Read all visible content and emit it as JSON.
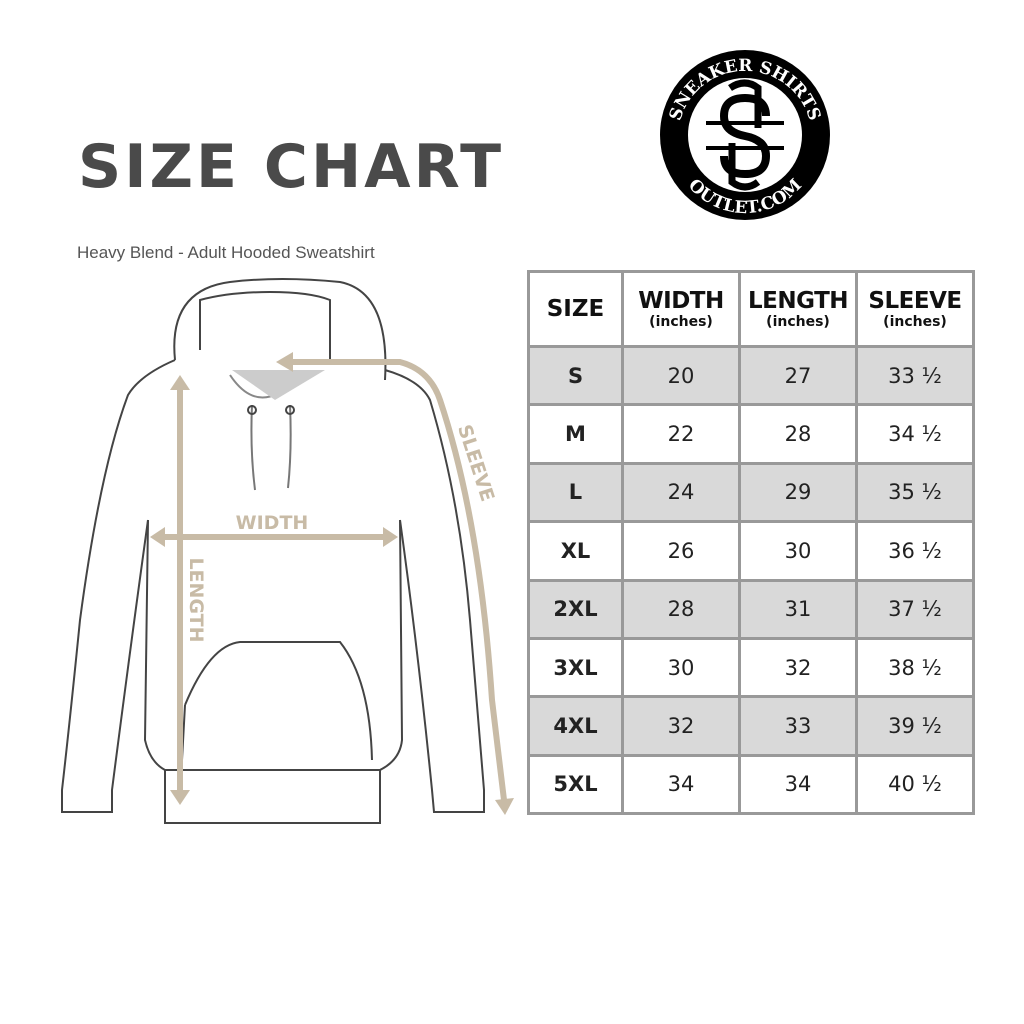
{
  "title": "SIZE CHART",
  "subtitle": "Heavy Blend - Adult Hooded Sweatshirt",
  "logo": {
    "top_text": "SNEAKER SHIRTS",
    "bottom_text": "OUTLET.COM",
    "monogram": "SS"
  },
  "diagram": {
    "width_label": "WIDTH",
    "length_label": "LENGTH",
    "sleeve_label": "SLEEVE",
    "arrow_color": "#c8bba6"
  },
  "table": {
    "headers": [
      {
        "label": "SIZE",
        "unit": ""
      },
      {
        "label": "WIDTH",
        "unit": "(inches)"
      },
      {
        "label": "LENGTH",
        "unit": "(inches)"
      },
      {
        "label": "SLEEVE",
        "unit": "(inches)"
      }
    ],
    "rows": [
      [
        "S",
        "20",
        "27",
        "33 ½"
      ],
      [
        "M",
        "22",
        "28",
        "34 ½"
      ],
      [
        "L",
        "24",
        "29",
        "35 ½"
      ],
      [
        "XL",
        "26",
        "30",
        "36 ½"
      ],
      [
        "2XL",
        "28",
        "31",
        "37 ½"
      ],
      [
        "3XL",
        "30",
        "32",
        "38 ½"
      ],
      [
        "4XL",
        "32",
        "33",
        "39 ½"
      ],
      [
        "5XL",
        "34",
        "34",
        "40 ½"
      ]
    ],
    "shade_color": "#d9d9d9",
    "border_color": "#999999"
  }
}
